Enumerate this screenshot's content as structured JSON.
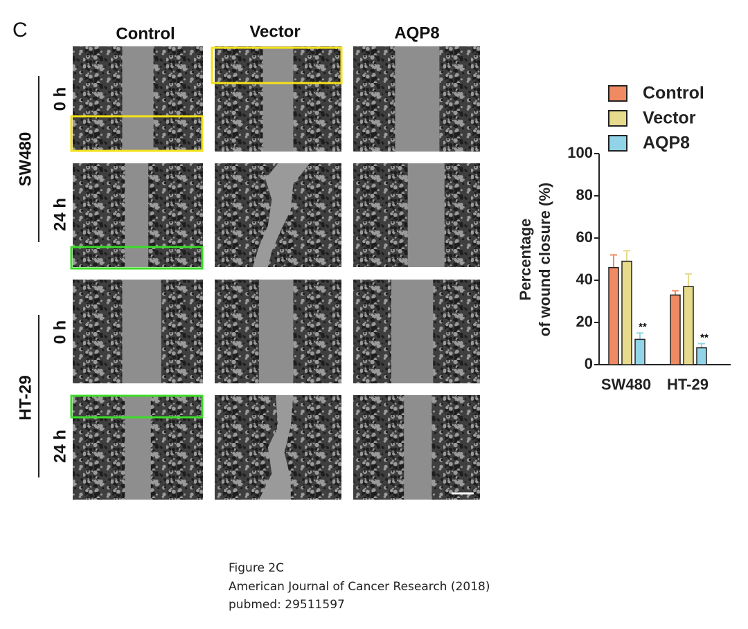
{
  "figure": {
    "panel_label": "C",
    "columns": [
      "Control",
      "Vector",
      "AQP8"
    ],
    "cell_lines": [
      "SW480",
      "HT-29"
    ],
    "time_points": [
      "0 h",
      "24 h",
      "0 h",
      "24 h"
    ],
    "caption": [
      "Figure 2C",
      "American Journal of Cancer Research (2018)",
      "pubmed: 29511597"
    ]
  },
  "chart_data": {
    "type": "bar",
    "y_label": [
      "Percentage",
      "of wound closure (%)"
    ],
    "categories": [
      "SW480",
      "HT-29"
    ],
    "series": [
      {
        "name": "Control",
        "color": "#f08a63",
        "values": [
          46,
          33
        ],
        "errors": [
          6,
          2
        ]
      },
      {
        "name": "Vector",
        "color": "#e6da8c",
        "values": [
          49,
          37
        ],
        "errors": [
          5,
          6
        ]
      },
      {
        "name": "AQP8",
        "color": "#91d4e8",
        "values": [
          12,
          8
        ],
        "errors": [
          3,
          2
        ],
        "annotations": [
          "**",
          "**"
        ]
      }
    ],
    "ylim": [
      0,
      100
    ],
    "yticks": [
      0,
      20,
      40,
      60,
      80,
      100
    ]
  }
}
